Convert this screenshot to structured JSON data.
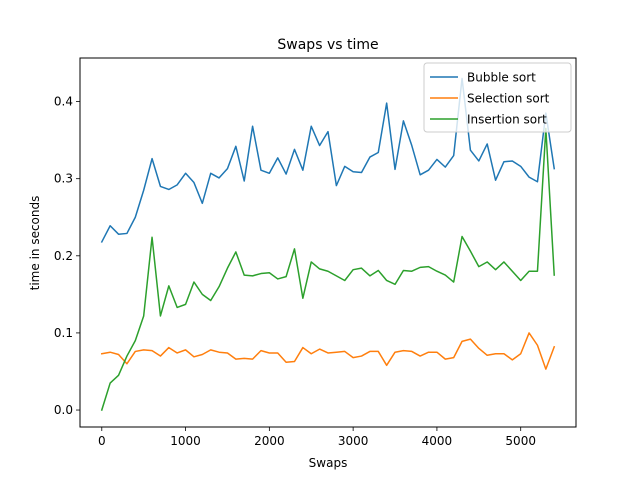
{
  "chart_data": {
    "type": "line",
    "title": "Swaps vs time",
    "xlabel": "Swaps",
    "ylabel": "time in seconds",
    "xlim": [
      -260,
      5660
    ],
    "ylim": [
      -0.022,
      0.4565
    ],
    "xticks": [
      0,
      1000,
      2000,
      3000,
      4000,
      5000
    ],
    "xtick_labels": [
      "0",
      "1000",
      "2000",
      "3000",
      "4000",
      "5000"
    ],
    "yticks": [
      0.0,
      0.1,
      0.2,
      0.3,
      0.4
    ],
    "ytick_labels": [
      "0.0",
      "0.1",
      "0.2",
      "0.3",
      "0.4"
    ],
    "grid": false,
    "legend_position": "top-right",
    "x": [
      0,
      100,
      200,
      300,
      400,
      500,
      600,
      700,
      800,
      900,
      1000,
      1100,
      1200,
      1300,
      1400,
      1500,
      1600,
      1700,
      1800,
      1900,
      2000,
      2100,
      2200,
      2300,
      2400,
      2500,
      2600,
      2700,
      2800,
      2900,
      3000,
      3100,
      3200,
      3300,
      3400,
      3500,
      3600,
      3700,
      3800,
      3900,
      4000,
      4100,
      4200,
      4300,
      4400,
      4500,
      4600,
      4700,
      4800,
      4900,
      5000,
      5100,
      5200,
      5300,
      5400
    ],
    "series": [
      {
        "name": "Bubble sort",
        "color": "#1f77b4",
        "values": [
          0.218,
          0.239,
          0.228,
          0.229,
          0.25,
          0.285,
          0.326,
          0.29,
          0.286,
          0.292,
          0.307,
          0.295,
          0.268,
          0.307,
          0.301,
          0.313,
          0.342,
          0.297,
          0.368,
          0.311,
          0.307,
          0.327,
          0.306,
          0.338,
          0.311,
          0.368,
          0.343,
          0.361,
          0.291,
          0.316,
          0.309,
          0.308,
          0.328,
          0.334,
          0.398,
          0.312,
          0.375,
          0.343,
          0.305,
          0.311,
          0.325,
          0.315,
          0.33,
          0.43,
          0.337,
          0.323,
          0.345,
          0.298,
          0.322,
          0.323,
          0.316,
          0.302,
          0.296,
          0.385,
          0.313
        ]
      },
      {
        "name": "Selection sort",
        "color": "#ff7f0e",
        "values": [
          0.073,
          0.075,
          0.072,
          0.06,
          0.076,
          0.078,
          0.077,
          0.07,
          0.081,
          0.074,
          0.078,
          0.069,
          0.072,
          0.078,
          0.075,
          0.074,
          0.066,
          0.067,
          0.066,
          0.077,
          0.074,
          0.074,
          0.062,
          0.063,
          0.081,
          0.073,
          0.079,
          0.074,
          0.075,
          0.076,
          0.068,
          0.07,
          0.076,
          0.076,
          0.058,
          0.075,
          0.077,
          0.076,
          0.07,
          0.075,
          0.075,
          0.066,
          0.068,
          0.089,
          0.092,
          0.08,
          0.071,
          0.073,
          0.073,
          0.065,
          0.073,
          0.1,
          0.084,
          0.053,
          0.082
        ]
      },
      {
        "name": "Insertion sort",
        "color": "#2ca02c",
        "values": [
          0.0,
          0.035,
          0.045,
          0.07,
          0.09,
          0.122,
          0.224,
          0.122,
          0.161,
          0.133,
          0.137,
          0.166,
          0.15,
          0.142,
          0.16,
          0.184,
          0.205,
          0.175,
          0.174,
          0.177,
          0.178,
          0.17,
          0.173,
          0.209,
          0.145,
          0.192,
          0.183,
          0.18,
          0.174,
          0.168,
          0.182,
          0.184,
          0.174,
          0.181,
          0.168,
          0.163,
          0.181,
          0.18,
          0.185,
          0.186,
          0.18,
          0.175,
          0.166,
          0.225,
          0.206,
          0.186,
          0.192,
          0.182,
          0.192,
          0.18,
          0.168,
          0.18,
          0.18,
          0.365,
          0.175
        ]
      }
    ]
  }
}
